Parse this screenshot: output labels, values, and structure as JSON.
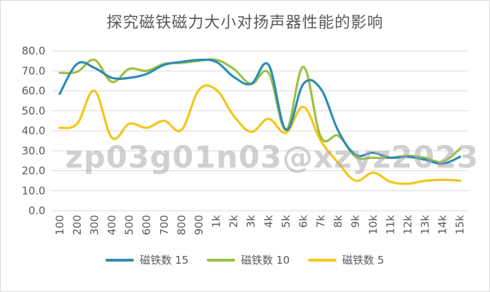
{
  "chart_data": {
    "type": "line",
    "title": "探究磁铁磁力大小对扬声器性能的影响",
    "xlabel": "",
    "ylabel": "",
    "ylim": [
      0,
      80
    ],
    "yticks": [
      "0.0",
      "10.0",
      "20.0",
      "30.0",
      "40.0",
      "50.0",
      "60.0",
      "70.0",
      "80.0"
    ],
    "categories": [
      "100",
      "200",
      "300",
      "400",
      "500",
      "600",
      "700",
      "800",
      "900",
      "1k",
      "2k",
      "3k",
      "4k",
      "5k",
      "6k",
      "7k",
      "8k",
      "9k",
      "10k",
      "11k",
      "12k",
      "13k",
      "14k",
      "15k"
    ],
    "grid": true,
    "legend_position": "bottom",
    "series": [
      {
        "name": "磁铁数 15",
        "color": "#2E8BB5",
        "values": [
          58.5,
          73.5,
          71.5,
          66.5,
          66.5,
          68.5,
          73.0,
          74.5,
          75.5,
          74.5,
          67.0,
          63.5,
          73.0,
          40.5,
          63.5,
          61.0,
          40.0,
          28.0,
          29.0,
          26.5,
          27.0,
          25.5,
          23.5,
          27.0
        ]
      },
      {
        "name": "磁铁数 10",
        "color": "#9AC142",
        "values": [
          69.0,
          69.5,
          75.5,
          64.5,
          71.0,
          70.0,
          73.5,
          74.0,
          75.0,
          75.5,
          71.0,
          63.5,
          69.0,
          40.5,
          72.0,
          37.0,
          37.5,
          27.0,
          26.5,
          26.5,
          27.5,
          26.5,
          24.5,
          31.0
        ]
      },
      {
        "name": "磁铁数 5",
        "color": "#F5C518",
        "values": [
          41.5,
          43.5,
          60.0,
          36.5,
          43.5,
          41.5,
          45.0,
          40.5,
          60.5,
          60.5,
          47.5,
          39.5,
          46.0,
          39.0,
          52.0,
          35.0,
          24.0,
          15.0,
          19.0,
          14.5,
          13.5,
          15.0,
          15.5,
          15.0
        ]
      }
    ]
  },
  "watermark": "zp03g01n03@xzyz2023"
}
